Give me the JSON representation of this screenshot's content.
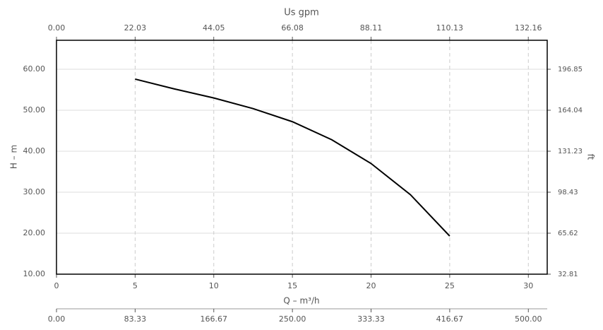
{
  "chart_data": {
    "type": "line",
    "x_label": "Q – m³/h",
    "y_label": "H – m",
    "x2_label": "Us gpm",
    "y2_label": "ft",
    "x": [
      5,
      7.5,
      10,
      12.5,
      15,
      17.5,
      20,
      22.5,
      25
    ],
    "values": [
      57.6,
      55.2,
      53.0,
      50.4,
      47.2,
      42.8,
      37.0,
      29.4,
      19.3
    ],
    "color": "#000000",
    "xlim": [
      0,
      31.2
    ],
    "xticks": [
      0,
      5,
      10,
      15,
      20,
      25,
      30
    ],
    "ylim": [
      10,
      67.07
    ],
    "yticks": [
      {
        "value": 10,
        "label": "10.00"
      },
      {
        "value": 20,
        "label": "20.00"
      },
      {
        "value": 30,
        "label": "30.00"
      },
      {
        "value": 40,
        "label": "40.00"
      },
      {
        "value": 50,
        "label": "50.00"
      },
      {
        "value": 60,
        "label": "60.00"
      }
    ],
    "x2lim": [
      0,
      137.46
    ],
    "x2ticks": [
      {
        "value": 0,
        "label": "0.00"
      },
      22.03,
      44.05,
      66.08,
      88.11,
      110.13,
      132.16
    ],
    "x3lim": [
      0,
      520
    ],
    "x3ticks": [
      {
        "value": 0,
        "label": "0.00"
      },
      83.33,
      166.67,
      {
        "value": 250,
        "label": "250.00"
      },
      333.33,
      416.67,
      {
        "value": 500,
        "label": "500.00"
      }
    ],
    "y2lim": [
      32.81,
      220.04
    ],
    "y2ticks": [
      32.81,
      65.62,
      98.43,
      131.23,
      164.04,
      196.85
    ],
    "grid": true
  }
}
